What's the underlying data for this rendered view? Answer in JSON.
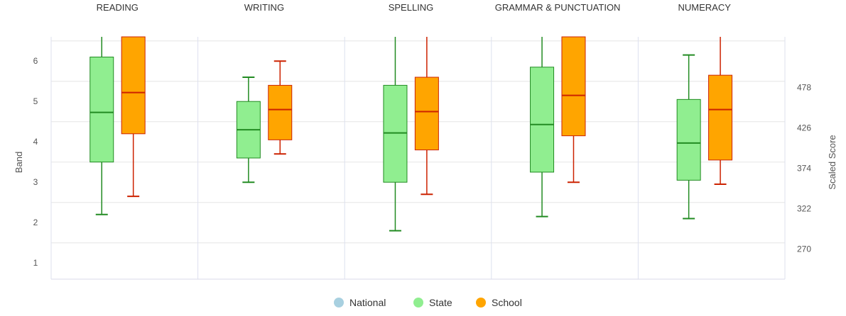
{
  "chart_data": {
    "type": "boxplot",
    "categories": [
      "READING",
      "WRITING",
      "SPELLING",
      "GRAMMAR & PUNCTUATION",
      "NUMERACY"
    ],
    "ylabel": "Band",
    "ylabel_right": "Scaled Score",
    "ylim": [
      0.6,
      6.6
    ],
    "y_ticks": [
      1,
      2,
      3,
      4,
      5,
      6
    ],
    "right_ticks": [
      "270",
      "322",
      "374",
      "426",
      "478"
    ],
    "right_tick_bands": [
      1.35,
      2.35,
      3.35,
      4.35,
      5.35
    ],
    "grid": true,
    "legend": {
      "position": "bottom"
    },
    "colors": {
      "national": "#a8d0e0",
      "state_fill": "#90ee90",
      "state_line": "#228b22",
      "school_fill": "#ffa500",
      "school_line": "#cc2200"
    },
    "series": [
      {
        "name": "National",
        "boxes": []
      },
      {
        "name": "State",
        "boxes": [
          {
            "min": 2.2,
            "q1": 3.5,
            "median": 4.73,
            "q3": 6.1,
            "max": 6.6
          },
          {
            "min": 3.0,
            "q1": 3.6,
            "median": 4.3,
            "q3": 5.0,
            "max": 5.6
          },
          {
            "min": 1.8,
            "q1": 3.0,
            "median": 4.22,
            "q3": 5.4,
            "max": 6.6
          },
          {
            "min": 2.15,
            "q1": 3.25,
            "median": 4.43,
            "q3": 5.85,
            "max": 6.6
          },
          {
            "min": 2.1,
            "q1": 3.05,
            "median": 3.97,
            "q3": 5.05,
            "max": 6.15
          }
        ]
      },
      {
        "name": "School",
        "boxes": [
          {
            "min": 2.65,
            "q1": 4.2,
            "median": 5.22,
            "q3": 6.6,
            "max": 6.6
          },
          {
            "min": 3.7,
            "q1": 4.05,
            "median": 4.8,
            "q3": 5.4,
            "max": 6.0
          },
          {
            "min": 2.7,
            "q1": 3.8,
            "median": 4.75,
            "q3": 5.6,
            "max": 6.6
          },
          {
            "min": 3.0,
            "q1": 4.15,
            "median": 5.15,
            "q3": 6.6,
            "max": 6.6
          },
          {
            "min": 2.95,
            "q1": 3.55,
            "median": 4.8,
            "q3": 5.65,
            "max": 6.6
          }
        ]
      }
    ]
  }
}
